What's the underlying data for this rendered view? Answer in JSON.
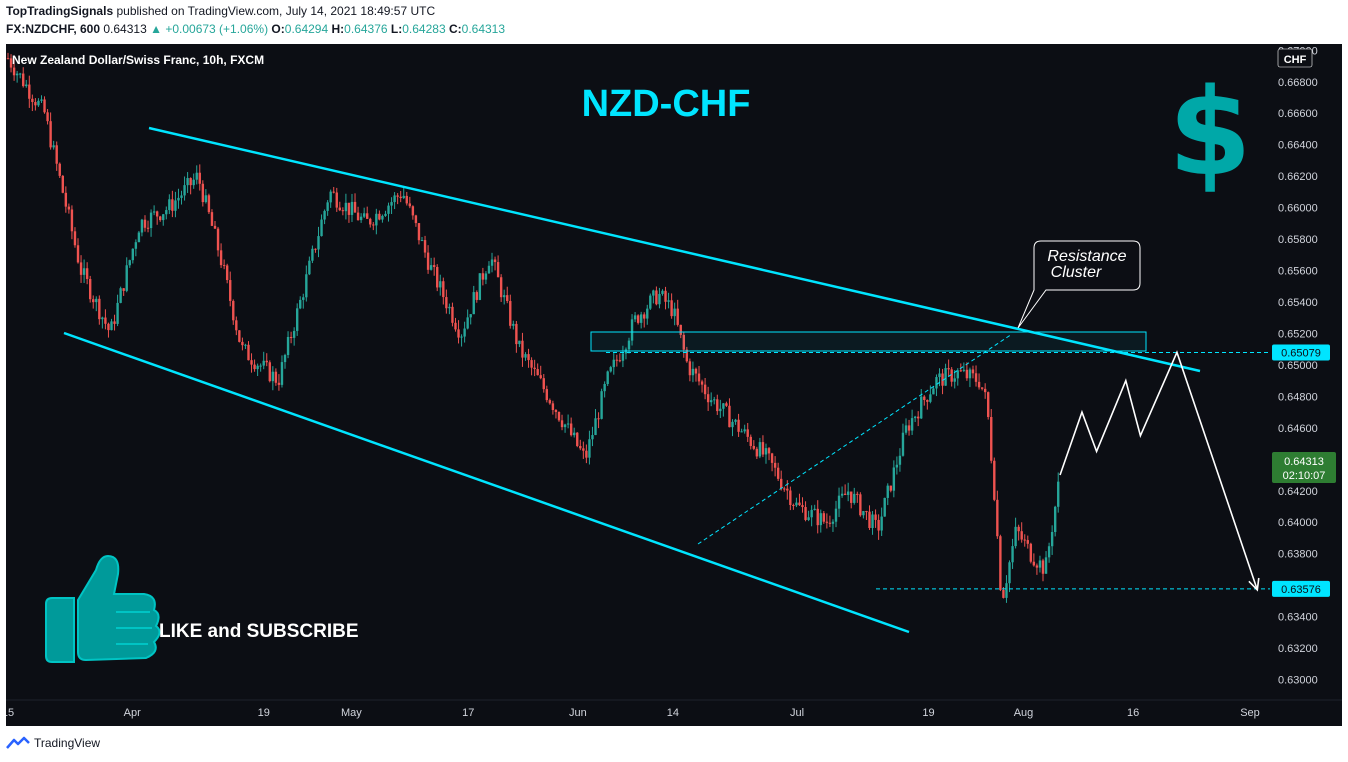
{
  "header": {
    "author": "TopTradingSignals",
    "published": "published on TradingView.com, July 14, 2021 18:49:57 UTC",
    "symbol": "FX:NZDCHF, 600",
    "price": "0.64313",
    "change": "+0.00673 (+1.06%)",
    "ohlc": [
      {
        "k": "O:",
        "v": "0.64294"
      },
      {
        "k": "H:",
        "v": "0.64376"
      },
      {
        "k": "L:",
        "v": "0.64283"
      },
      {
        "k": "C:",
        "v": "0.64313"
      }
    ]
  },
  "footer": {
    "brand": "TradingView"
  },
  "colors": {
    "background": "#0c0e14",
    "up": "#26a69a",
    "down": "#ef5350",
    "channel": "#00e5ff",
    "annotation": "#ffffff",
    "price_badge": "#2e7d32"
  },
  "chart_data": {
    "type": "candlestick",
    "title": "New Zealand Dollar/Swiss Franc, 10h, FXCM",
    "heading": "NZD-CHF",
    "currency_label": "CHF",
    "promo_text": "LIKE and SUBSCRIBE",
    "callout": [
      "Resistance",
      "Cluster"
    ],
    "x_ticks": [
      "15",
      "Apr",
      "19",
      "May",
      "17",
      "Jun",
      "14",
      "Jul",
      "19",
      "Aug",
      "16",
      "Sep"
    ],
    "y_ticks": [
      "0.67000",
      "0.66800",
      "0.66600",
      "0.66400",
      "0.66200",
      "0.66000",
      "0.65800",
      "0.65600",
      "0.65400",
      "0.65200",
      "0.65000",
      "0.64800",
      "0.64600",
      "0.64400",
      "0.64200",
      "0.64000",
      "0.63800",
      "0.63600",
      "0.63400",
      "0.63200",
      "0.63000"
    ],
    "y_range": [
      0.6287,
      0.6704
    ],
    "last_price": {
      "value": "0.64313",
      "countdown": "02:10:07"
    },
    "levels": [
      {
        "label": "0.65079",
        "value": 0.65079
      },
      {
        "label": "0.63576",
        "value": 0.63576
      }
    ],
    "path_points": [
      [
        "2021-03-15",
        0.6695
      ],
      [
        "2021-03-20",
        0.666
      ],
      [
        "2021-03-25",
        0.656
      ],
      [
        "2021-03-29",
        0.652
      ],
      [
        "2021-04-02",
        0.659
      ],
      [
        "2021-04-06",
        0.66
      ],
      [
        "2021-04-10",
        0.662
      ],
      [
        "2021-04-13",
        0.657
      ],
      [
        "2021-04-16",
        0.651
      ],
      [
        "2021-04-21",
        0.649
      ],
      [
        "2021-04-24",
        0.654
      ],
      [
        "2021-04-28",
        0.661
      ],
      [
        "2021-05-03",
        0.659
      ],
      [
        "2021-05-08",
        0.661
      ],
      [
        "2021-05-12",
        0.656
      ],
      [
        "2021-05-16",
        0.652
      ],
      [
        "2021-05-20",
        0.657
      ],
      [
        "2021-05-24",
        0.651
      ],
      [
        "2021-05-28",
        0.648
      ],
      [
        "2021-06-02",
        0.644
      ],
      [
        "2021-06-05",
        0.649
      ],
      [
        "2021-06-09",
        0.653
      ],
      [
        "2021-06-12",
        0.6545
      ],
      [
        "2021-06-14",
        0.6535
      ],
      [
        "2021-06-16",
        0.65
      ],
      [
        "2021-06-19",
        0.648
      ],
      [
        "2021-06-23",
        0.646
      ],
      [
        "2021-06-27",
        0.644
      ],
      [
        "2021-07-01",
        0.641
      ],
      [
        "2021-07-05",
        0.64
      ],
      [
        "2021-07-08",
        0.642
      ],
      [
        "2021-07-12",
        0.6395
      ],
      [
        "2021-07-16",
        0.646
      ],
      [
        "2021-07-20",
        0.649
      ],
      [
        "2021-07-23",
        0.6495
      ],
      [
        "2021-07-26",
        0.649
      ],
      [
        "2021-07-27",
        0.6475
      ],
      [
        "2021-07-28",
        0.642
      ],
      [
        "2021-07-29",
        0.635
      ],
      [
        "2021-07-31",
        0.6395
      ],
      [
        "2021-08-02",
        0.638
      ],
      [
        "2021-08-04",
        0.637
      ],
      [
        "2021-08-06",
        0.643
      ]
    ],
    "projection": [
      [
        "2021-08-06",
        0.643
      ],
      [
        "2021-08-09",
        0.647
      ],
      [
        "2021-08-11",
        0.6445
      ],
      [
        "2021-08-15",
        0.649
      ],
      [
        "2021-08-17",
        0.6455
      ],
      [
        "2021-08-22",
        0.6508
      ],
      [
        "2021-09-02",
        0.6357
      ]
    ]
  }
}
